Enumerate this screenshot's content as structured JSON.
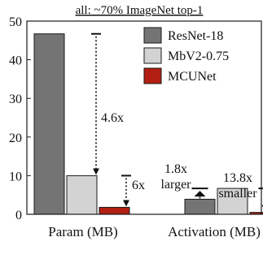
{
  "colors": {
    "resnet": "#747474",
    "mbv2": "#d3d3d3",
    "mcunet": "#b21f12",
    "stroke": "#1a1a1a",
    "text": "#111111"
  },
  "chart_data": {
    "type": "bar",
    "title": "all: ~70% ImageNet top-1",
    "xlabel": "",
    "ylabel": "",
    "ylim": [
      0,
      50
    ],
    "yticks": [
      0,
      10,
      20,
      30,
      40,
      50
    ],
    "grid": false,
    "legend_position": "top-right",
    "categories": [
      "Param (MB)",
      "Activation (MB)"
    ],
    "series": [
      {
        "name": "ResNet-18",
        "color_key": "resnet",
        "values": [
          46.7,
          3.9
        ]
      },
      {
        "name": "MbV2-0.75",
        "color_key": "mbv2",
        "values": [
          10.0,
          6.7
        ]
      },
      {
        "name": "MCUNet",
        "color_key": "mcunet",
        "values": [
          1.8,
          0.5
        ]
      }
    ],
    "annotations": [
      {
        "text": "4.6x"
      },
      {
        "text": "6x"
      },
      {
        "text": "1.8x"
      },
      {
        "text": "larger"
      },
      {
        "text": "13.8x"
      },
      {
        "text": "smaller"
      }
    ]
  }
}
